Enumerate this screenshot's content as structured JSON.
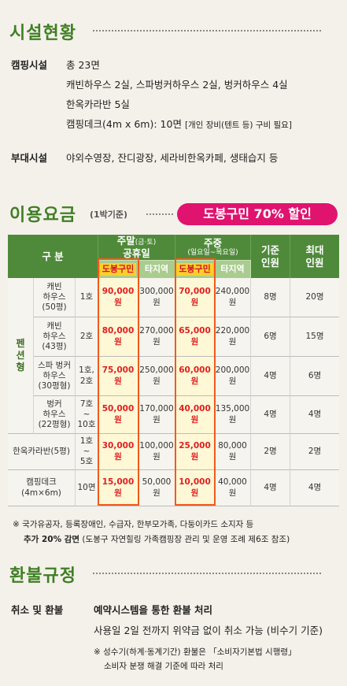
{
  "facilities": {
    "title": "시설현황",
    "camping_label": "캠핑시설",
    "camping_total": "총 23면",
    "camping_line1": "캐빈하우스 2실, 스파벙커하우스 2실, 벙커하우스 4실",
    "camping_line2": "한옥카라반 5실",
    "camping_line3": "캠핑데크(4m x 6m): 10면",
    "camping_line3_note": "[개인 장비(텐트 등) 구비 필요]",
    "aux_label": "부대시설",
    "aux_text": "야외수영장, 잔디광장, 세라비한옥카페, 생태습지 등"
  },
  "pricing": {
    "title": "이용요금",
    "unit": "(1박기준)",
    "badge": "도봉구민 70% 할인",
    "headers": {
      "category": "구 분",
      "weekend_title": "주말",
      "weekend_paren": "(금·토)",
      "weekend_sub": "공휴일",
      "weekday_title": "주중",
      "weekday_sub": "(일요일~목요일)",
      "resident": "도봉구민",
      "other": "타지역",
      "base": "기준\n인원",
      "max": "최대\n인원"
    },
    "pension_label": "펜\n션\n형",
    "rows": [
      {
        "name": "캐빈\n하우스\n(50평)",
        "no": "1호",
        "we_res": "90,000원",
        "we_oth": "300,000원",
        "wd_res": "70,000원",
        "wd_oth": "240,000원",
        "base": "8명",
        "max": "20명"
      },
      {
        "name": "캐빈\n하우스\n(43평)",
        "no": "2호",
        "we_res": "80,000원",
        "we_oth": "270,000원",
        "wd_res": "65,000원",
        "wd_oth": "220,000원",
        "base": "6명",
        "max": "15명"
      },
      {
        "name": "스파 벙커\n하우스\n(30평형)",
        "no": "1호,\n2호",
        "we_res": "75,000원",
        "we_oth": "250,000원",
        "wd_res": "60,000원",
        "wd_oth": "200,000원",
        "base": "4명",
        "max": "6명"
      },
      {
        "name": "벙커\n하우스\n(22평형)",
        "no": "7호\n~\n10호",
        "we_res": "50,000원",
        "we_oth": "170,000원",
        "wd_res": "40,000원",
        "wd_oth": "135,000원",
        "base": "4명",
        "max": "4명"
      },
      {
        "name": "한옥카라반(5평)",
        "no": "1호\n~\n5호",
        "we_res": "30,000원",
        "we_oth": "100,000원",
        "wd_res": "25,000원",
        "wd_oth": "80,000원",
        "base": "2명",
        "max": "2명"
      },
      {
        "name": "캠핑데크\n(4m×6m)",
        "no": "10면",
        "we_res": "15,000원",
        "we_oth": "50,000원",
        "wd_res": "10,000원",
        "wd_oth": "40,000원",
        "base": "4명",
        "max": "4명"
      }
    ],
    "note_line1": "※ 국가유공자, 등록장애인, 수급자, 한부모가족, 다둥이카드 소지자 등",
    "note_line2_bold": "추가 20% 감면",
    "note_line2_rest": " (도봉구 자연힐링 가족캠핑장 관리 및 운영 조례 제6조 참조)"
  },
  "refund": {
    "title": "환불규정",
    "label": "취소 및 환불",
    "main": "예약시스템을 통한 환불 처리",
    "line2": "사용일 2일 전까지 위약금 없이 취소 가능 (비수기 기준)",
    "note1": "※ 성수기(하계·동계기간) 환불은 「소비자기본법 시행령」",
    "note2": "소비자 분쟁 해결 기준에 따라 처리"
  },
  "colors": {
    "title_green": "#3f7f24",
    "header_green": "#4f8a3a",
    "header_light": "#a9cc8f",
    "badge_pink": "#e0136f",
    "highlight_box": "#f25a1c",
    "price_red": "#e02020"
  }
}
